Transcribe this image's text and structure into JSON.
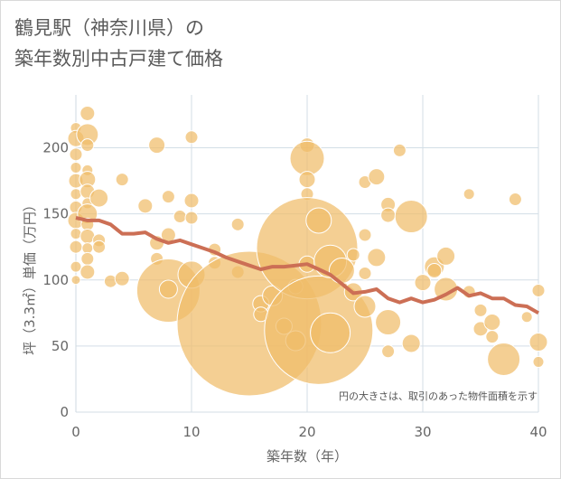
{
  "page": {
    "title_line1": "鶴見駅（神奈川県）の",
    "title_line2": "築年数別中古戸建て価格"
  },
  "chart_data": {
    "type": "scatter",
    "title": "鶴見駅（神奈川県）の築年数別中古戸建て価格",
    "xlabel": "築年数（年）",
    "ylabel": "坪（3.3㎡）単価（万円）",
    "xlim": [
      0,
      40
    ],
    "ylim": [
      0,
      240
    ],
    "xticks": [
      0,
      10,
      20,
      30,
      40
    ],
    "yticks": [
      0,
      50,
      100,
      150,
      200
    ],
    "grid": true,
    "note": "円の大きさは、取引のあった物件面積を示す",
    "colors": {
      "bubble": "#f0bd6a",
      "bubble_edge": "#ffffff",
      "trend": "#cc6f55",
      "grid": "#d3dee6",
      "axis_text": "#666666"
    },
    "bubbles": [
      {
        "x": 0,
        "y": 215,
        "r": 6
      },
      {
        "x": 0,
        "y": 207,
        "r": 9
      },
      {
        "x": 0,
        "y": 195,
        "r": 7
      },
      {
        "x": 0,
        "y": 185,
        "r": 6
      },
      {
        "x": 0,
        "y": 175,
        "r": 8
      },
      {
        "x": 0,
        "y": 165,
        "r": 6
      },
      {
        "x": 0,
        "y": 155,
        "r": 7
      },
      {
        "x": 0,
        "y": 145,
        "r": 9
      },
      {
        "x": 0,
        "y": 135,
        "r": 6
      },
      {
        "x": 0,
        "y": 125,
        "r": 7
      },
      {
        "x": 0,
        "y": 110,
        "r": 6
      },
      {
        "x": 0,
        "y": 100,
        "r": 5
      },
      {
        "x": 1,
        "y": 226,
        "r": 8
      },
      {
        "x": 1,
        "y": 210,
        "r": 12
      },
      {
        "x": 1,
        "y": 202,
        "r": 7
      },
      {
        "x": 1,
        "y": 183,
        "r": 6
      },
      {
        "x": 1,
        "y": 176,
        "r": 9
      },
      {
        "x": 1,
        "y": 167,
        "r": 8
      },
      {
        "x": 1,
        "y": 158,
        "r": 6
      },
      {
        "x": 1,
        "y": 150,
        "r": 11
      },
      {
        "x": 1,
        "y": 142,
        "r": 7
      },
      {
        "x": 1,
        "y": 133,
        "r": 8
      },
      {
        "x": 1,
        "y": 124,
        "r": 6
      },
      {
        "x": 1,
        "y": 116,
        "r": 7
      },
      {
        "x": 1,
        "y": 106,
        "r": 8
      },
      {
        "x": 2,
        "y": 162,
        "r": 10
      },
      {
        "x": 2,
        "y": 130,
        "r": 7
      },
      {
        "x": 2,
        "y": 125,
        "r": 7
      },
      {
        "x": 3,
        "y": 99,
        "r": 7
      },
      {
        "x": 4,
        "y": 176,
        "r": 7
      },
      {
        "x": 4,
        "y": 101,
        "r": 8
      },
      {
        "x": 6,
        "y": 156,
        "r": 8
      },
      {
        "x": 7,
        "y": 202,
        "r": 9
      },
      {
        "x": 7,
        "y": 128,
        "r": 8
      },
      {
        "x": 7,
        "y": 116,
        "r": 7
      },
      {
        "x": 8,
        "y": 163,
        "r": 7
      },
      {
        "x": 8,
        "y": 134,
        "r": 8
      },
      {
        "x": 8,
        "y": 92,
        "r": 35
      },
      {
        "x": 8,
        "y": 93,
        "r": 10
      },
      {
        "x": 9,
        "y": 148,
        "r": 7
      },
      {
        "x": 10,
        "y": 208,
        "r": 7
      },
      {
        "x": 10,
        "y": 160,
        "r": 8
      },
      {
        "x": 10,
        "y": 147,
        "r": 7
      },
      {
        "x": 10,
        "y": 104,
        "r": 15
      },
      {
        "x": 12,
        "y": 123,
        "r": 7
      },
      {
        "x": 12,
        "y": 113,
        "r": 7
      },
      {
        "x": 14,
        "y": 142,
        "r": 7
      },
      {
        "x": 14,
        "y": 106,
        "r": 7
      },
      {
        "x": 15,
        "y": 67,
        "r": 80
      },
      {
        "x": 16,
        "y": 82,
        "r": 9
      },
      {
        "x": 16,
        "y": 74,
        "r": 8
      },
      {
        "x": 17,
        "y": 88,
        "r": 11
      },
      {
        "x": 18,
        "y": 65,
        "r": 9
      },
      {
        "x": 19,
        "y": 54,
        "r": 11
      },
      {
        "x": 19,
        "y": 95,
        "r": 8
      },
      {
        "x": 20,
        "y": 202,
        "r": 8
      },
      {
        "x": 20,
        "y": 192,
        "r": 19
      },
      {
        "x": 20,
        "y": 176,
        "r": 9
      },
      {
        "x": 20,
        "y": 165,
        "r": 7
      },
      {
        "x": 20,
        "y": 124,
        "r": 56
      },
      {
        "x": 20,
        "y": 112,
        "r": 9
      },
      {
        "x": 21,
        "y": 145,
        "r": 14
      },
      {
        "x": 21,
        "y": 62,
        "r": 60
      },
      {
        "x": 22,
        "y": 114,
        "r": 18
      },
      {
        "x": 22,
        "y": 60,
        "r": 22
      },
      {
        "x": 23,
        "y": 107,
        "r": 14
      },
      {
        "x": 24,
        "y": 119,
        "r": 7
      },
      {
        "x": 24,
        "y": 91,
        "r": 10
      },
      {
        "x": 25,
        "y": 134,
        "r": 7
      },
      {
        "x": 25,
        "y": 105,
        "r": 7
      },
      {
        "x": 25,
        "y": 80,
        "r": 12
      },
      {
        "x": 25,
        "y": 174,
        "r": 7
      },
      {
        "x": 26,
        "y": 178,
        "r": 9
      },
      {
        "x": 26,
        "y": 117,
        "r": 10
      },
      {
        "x": 27,
        "y": 157,
        "r": 8
      },
      {
        "x": 27,
        "y": 149,
        "r": 8
      },
      {
        "x": 27,
        "y": 68,
        "r": 14
      },
      {
        "x": 27,
        "y": 46,
        "r": 7
      },
      {
        "x": 28,
        "y": 198,
        "r": 7
      },
      {
        "x": 29,
        "y": 148,
        "r": 18
      },
      {
        "x": 29,
        "y": 52,
        "r": 10
      },
      {
        "x": 30,
        "y": 98,
        "r": 9
      },
      {
        "x": 31,
        "y": 110,
        "r": 11
      },
      {
        "x": 31,
        "y": 107,
        "r": 8
      },
      {
        "x": 32,
        "y": 118,
        "r": 10
      },
      {
        "x": 32,
        "y": 93,
        "r": 13
      },
      {
        "x": 34,
        "y": 165,
        "r": 6
      },
      {
        "x": 34,
        "y": 91,
        "r": 7
      },
      {
        "x": 35,
        "y": 77,
        "r": 7
      },
      {
        "x": 35,
        "y": 63,
        "r": 8
      },
      {
        "x": 36,
        "y": 68,
        "r": 9
      },
      {
        "x": 36,
        "y": 57,
        "r": 7
      },
      {
        "x": 37,
        "y": 40,
        "r": 18
      },
      {
        "x": 38,
        "y": 161,
        "r": 7
      },
      {
        "x": 39,
        "y": 72,
        "r": 6
      },
      {
        "x": 40,
        "y": 92,
        "r": 7
      },
      {
        "x": 40,
        "y": 53,
        "r": 10
      },
      {
        "x": 40,
        "y": 38,
        "r": 6
      }
    ],
    "trend": {
      "x": [
        0,
        1,
        2,
        3,
        4,
        5,
        6,
        7,
        8,
        9,
        10,
        11,
        12,
        13,
        14,
        15,
        16,
        17,
        18,
        19,
        20,
        21,
        22,
        23,
        24,
        25,
        26,
        27,
        28,
        29,
        30,
        31,
        32,
        33,
        34,
        35,
        36,
        37,
        38,
        39,
        40
      ],
      "y": [
        147,
        145,
        145,
        142,
        135,
        135,
        136,
        131,
        128,
        130,
        127,
        124,
        121,
        117,
        114,
        111,
        108,
        110,
        110,
        111,
        112,
        108,
        104,
        97,
        90,
        91,
        93,
        86,
        83,
        86,
        83,
        85,
        89,
        94,
        88,
        90,
        86,
        86,
        81,
        80,
        75
      ]
    }
  }
}
